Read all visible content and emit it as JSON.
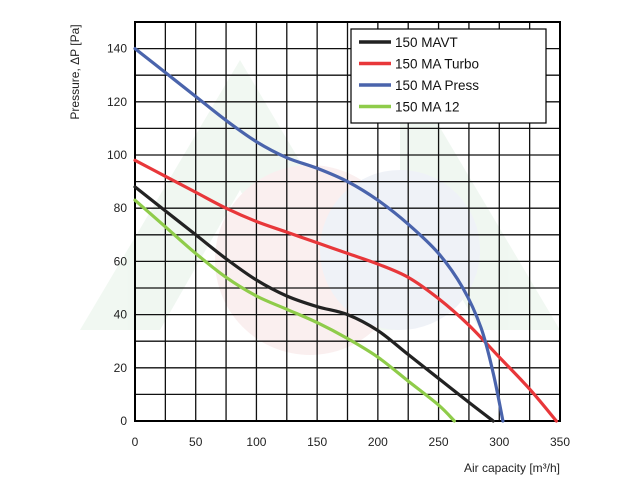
{
  "chart_data": {
    "type": "line",
    "xlabel": "Air capacity [m³/h]",
    "ylabel": "Pressure, ΔP [Pa]",
    "xlim": [
      0,
      350
    ],
    "ylim": [
      0,
      150
    ],
    "x_ticks": [
      0,
      50,
      100,
      150,
      200,
      250,
      300,
      350
    ],
    "y_ticks": [
      0,
      20,
      40,
      60,
      80,
      100,
      120,
      140
    ],
    "grid": true,
    "legend_position": "top-right",
    "series": [
      {
        "name": "150 MAVT",
        "color": "#222222",
        "points": [
          [
            0,
            88
          ],
          [
            25,
            79
          ],
          [
            50,
            70
          ],
          [
            75,
            61
          ],
          [
            100,
            53
          ],
          [
            125,
            47
          ],
          [
            150,
            43
          ],
          [
            175,
            40
          ],
          [
            200,
            34
          ],
          [
            225,
            25
          ],
          [
            250,
            16
          ],
          [
            275,
            7
          ],
          [
            295,
            0
          ]
        ]
      },
      {
        "name": "150 MA Turbo",
        "color": "#e8373a",
        "points": [
          [
            0,
            98
          ],
          [
            25,
            92
          ],
          [
            50,
            86
          ],
          [
            75,
            80
          ],
          [
            100,
            75
          ],
          [
            125,
            71
          ],
          [
            150,
            67
          ],
          [
            175,
            63
          ],
          [
            200,
            59
          ],
          [
            225,
            54
          ],
          [
            250,
            46
          ],
          [
            275,
            36
          ],
          [
            300,
            24
          ],
          [
            325,
            12
          ],
          [
            347,
            0
          ]
        ]
      },
      {
        "name": "150 MA Press",
        "color": "#4a64ac",
        "points": [
          [
            0,
            140
          ],
          [
            25,
            131
          ],
          [
            50,
            122
          ],
          [
            75,
            113
          ],
          [
            100,
            105
          ],
          [
            125,
            99
          ],
          [
            150,
            95
          ],
          [
            175,
            90
          ],
          [
            200,
            83
          ],
          [
            225,
            74
          ],
          [
            250,
            63
          ],
          [
            270,
            50
          ],
          [
            285,
            35
          ],
          [
            295,
            18
          ],
          [
            303,
            0
          ]
        ]
      },
      {
        "name": "150 MA 12",
        "color": "#8fcc4a",
        "points": [
          [
            0,
            83
          ],
          [
            25,
            73
          ],
          [
            50,
            63
          ],
          [
            75,
            54
          ],
          [
            100,
            47
          ],
          [
            125,
            42
          ],
          [
            150,
            37
          ],
          [
            175,
            31
          ],
          [
            200,
            24
          ],
          [
            225,
            15
          ],
          [
            250,
            6
          ],
          [
            263,
            0
          ]
        ]
      }
    ]
  }
}
